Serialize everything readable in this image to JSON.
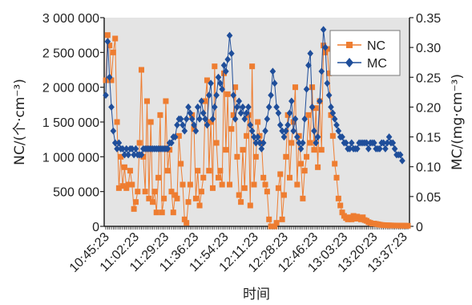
{
  "chart_data": {
    "type": "line",
    "xlabel": "时间",
    "ylabel_left": "NC/(个·cm⁻³)",
    "ylabel_right": "MC/(mg·cm⁻³)",
    "x_tick_labels": [
      "10:45:23",
      "11:02:23",
      "11:29:23",
      "11:36:23",
      "11:54:23",
      "12:11:23",
      "12:28:23",
      "12:46:23",
      "13:03:23",
      "13:20:23",
      "13:37:23"
    ],
    "y_left": {
      "min": 0,
      "max": 3000000,
      "ticks": [
        "0",
        "500 000",
        "1 000 000",
        "1 500 000",
        "2 000 000",
        "2 500 000",
        "3 000 000"
      ]
    },
    "y_right": {
      "min": 0,
      "max": 0.35,
      "ticks": [
        "0",
        "0.05",
        "0.10",
        "0.15",
        "0.20",
        "0.25",
        "0.30",
        "0.35"
      ]
    },
    "legend": {
      "position": "top-right"
    },
    "grid": false,
    "series": [
      {
        "name": "NC",
        "axis": "left",
        "color": "#ee7d31",
        "marker": "square",
        "values": [
          2100000,
          2750000,
          2600000,
          2100000,
          2500000,
          2700000,
          1500000,
          550000,
          1000000,
          580000,
          850000,
          550000,
          600000,
          800000,
          600000,
          250000,
          350000,
          500000,
          1200000,
          2250000,
          1000000,
          500000,
          1800000,
          400000,
          1500000,
          350000,
          500000,
          200000,
          700000,
          1600000,
          200000,
          400000,
          1800000,
          800000,
          1100000,
          500000,
          200000,
          450000,
          400000,
          1300000,
          900000,
          600000,
          100000,
          50000,
          350000,
          600000,
          1600000,
          1400000,
          400000,
          800000,
          300000,
          500000,
          700000,
          1800000,
          2100000,
          800000,
          1500000,
          550000,
          2300000,
          1200000,
          700000,
          800000,
          600000,
          2200000,
          1100000,
          1900000,
          600000,
          1400000,
          1600000,
          2000000,
          1000000,
          450000,
          350000,
          1100000,
          550000,
          1300000,
          1600000,
          300000,
          2300000,
          600000,
          1000000,
          1500000,
          1300000,
          1200000,
          700000,
          600000,
          500000,
          100000,
          0,
          0,
          0,
          50000,
          550000,
          750000,
          100000,
          450000,
          1000000,
          1600000,
          700000,
          1200000,
          1500000,
          2000000,
          600000,
          1300000,
          900000,
          400000,
          800000,
          1000000,
          1600000,
          1200000,
          2000000,
          1100000,
          1700000,
          850000,
          1800000,
          1100000,
          2600000,
          2500000,
          2550000,
          2200000,
          1600000,
          1300000,
          900000,
          700000,
          400000,
          300000,
          200000,
          150000,
          120000,
          100000,
          130000,
          100000,
          150000,
          110000,
          140000,
          120000,
          100000,
          130000,
          90000,
          80000,
          60000,
          50000,
          40000,
          40000,
          35000,
          30000,
          25000,
          20000,
          18000,
          16000,
          15000,
          14000,
          13000,
          12000,
          12000,
          11000,
          11000,
          10000,
          10000,
          9000,
          9000,
          8000
        ]
      },
      {
        "name": "MC",
        "axis": "right",
        "color": "#1f4e9a",
        "marker": "diamond",
        "values": [
          0.22,
          0.31,
          0.25,
          0.2,
          0.16,
          0.14,
          0.13,
          0.14,
          0.13,
          0.13,
          0.12,
          0.13,
          0.12,
          0.13,
          0.13,
          0.12,
          0.13,
          0.12,
          0.12,
          0.12,
          0.13,
          0.13,
          0.13,
          0.13,
          0.13,
          0.13,
          0.13,
          0.13,
          0.13,
          0.13,
          0.13,
          0.13,
          0.13,
          0.13,
          0.14,
          0.14,
          0.15,
          0.15,
          0.17,
          0.18,
          0.18,
          0.17,
          0.16,
          0.18,
          0.2,
          0.19,
          0.18,
          0.17,
          0.16,
          0.2,
          0.18,
          0.21,
          0.19,
          0.18,
          0.17,
          0.22,
          0.24,
          0.18,
          0.2,
          0.22,
          0.25,
          0.24,
          0.23,
          0.27,
          0.26,
          0.28,
          0.32,
          0.29,
          0.22,
          0.18,
          0.2,
          0.21,
          0.19,
          0.2,
          0.18,
          0.19,
          0.2,
          0.17,
          0.16,
          0.15,
          0.14,
          0.15,
          0.14,
          0.13,
          0.14,
          0.16,
          0.18,
          0.2,
          0.22,
          0.26,
          0.24,
          0.2,
          0.19,
          0.17,
          0.16,
          0.15,
          0.16,
          0.17,
          0.19,
          0.21,
          0.16,
          0.18,
          0.15,
          0.14,
          0.13,
          0.14,
          0.18,
          0.23,
          0.27,
          0.29,
          0.2,
          0.16,
          0.14,
          0.15,
          0.21,
          0.26,
          0.33,
          0.3,
          0.24,
          0.22,
          0.2,
          0.19,
          0.18,
          0.17,
          0.16,
          0.15,
          0.15,
          0.14,
          0.14,
          0.13,
          0.13,
          0.14,
          0.13,
          0.13,
          0.13,
          0.14,
          0.14,
          0.14,
          0.14,
          0.14,
          0.13,
          0.14,
          0.14,
          0.14,
          0.13,
          0.13,
          0.13,
          0.14,
          0.14,
          0.13,
          0.14,
          0.15,
          0.14,
          0.14,
          0.13,
          0.12,
          0.12,
          0.12,
          0.11
        ]
      }
    ]
  }
}
